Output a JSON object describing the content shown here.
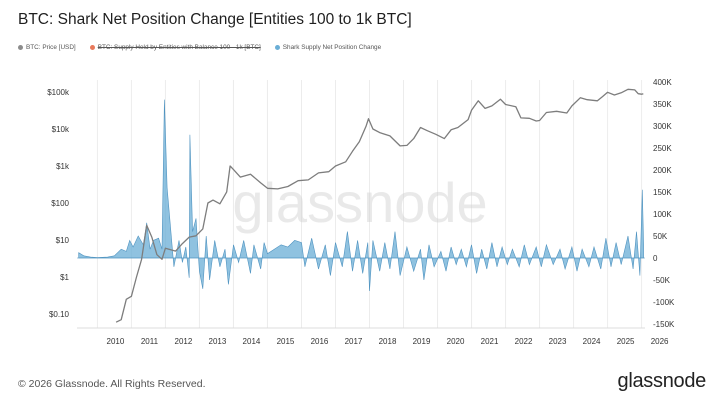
{
  "title": "BTC: Shark Net Position Change [Entities 100 to 1k BTC]",
  "legend": [
    {
      "label": "BTC: Price [USD]",
      "color": "#8c8c8c",
      "strike": false
    },
    {
      "label": "BTC: Supply Held by Entities with Balance 100 - 1k [BTC]",
      "color": "#e8795b",
      "strike": true
    },
    {
      "label": "Shark Supply Net Position Change",
      "color": "#6aaed6",
      "strike": false
    }
  ],
  "footer": "© 2026 Glassnode. All Rights Reserved.",
  "brand": "glassnode",
  "watermark": "glassnode",
  "chart_data": {
    "type": "line",
    "x_ticks": [
      "2010",
      "2011",
      "2012",
      "2013",
      "2014",
      "2015",
      "2016",
      "2017",
      "2018",
      "2019",
      "2020",
      "2021",
      "2022",
      "2023",
      "2024",
      "2025",
      "2026"
    ],
    "x_range": [
      2009.4,
      2026.1
    ],
    "y_left": {
      "scale": "log",
      "ticks": [
        "$0.10",
        "$1",
        "$10",
        "$100",
        "$1k",
        "$10k",
        "$100k"
      ],
      "tick_values": [
        0.1,
        1,
        10,
        100,
        1000,
        10000,
        100000
      ]
    },
    "y_right": {
      "scale": "linear",
      "ticks": [
        "400K",
        "350K",
        "300K",
        "250K",
        "200K",
        "150K",
        "100K",
        "50K",
        "0",
        "-50K",
        "-100K",
        "-150K"
      ],
      "tick_values": [
        400000,
        350000,
        300000,
        250000,
        200000,
        150000,
        100000,
        50000,
        0,
        -50000,
        -100000,
        -150000
      ]
    },
    "series": [
      {
        "name": "BTC: Price [USD]",
        "axis": "left",
        "color": "#8c8c8c",
        "points": [
          [
            2010.55,
            0.06
          ],
          [
            2010.7,
            0.07
          ],
          [
            2010.85,
            0.25
          ],
          [
            2011.0,
            0.3
          ],
          [
            2011.15,
            1.0
          ],
          [
            2011.3,
            3
          ],
          [
            2011.45,
            25
          ],
          [
            2011.6,
            12
          ],
          [
            2011.75,
            4
          ],
          [
            2011.9,
            3
          ],
          [
            2012.0,
            6
          ],
          [
            2012.3,
            5
          ],
          [
            2012.5,
            8
          ],
          [
            2012.7,
            12
          ],
          [
            2012.9,
            13
          ],
          [
            2013.1,
            20
          ],
          [
            2013.25,
            100
          ],
          [
            2013.4,
            120
          ],
          [
            2013.6,
            95
          ],
          [
            2013.8,
            200
          ],
          [
            2013.9,
            1000
          ],
          [
            2014.0,
            800
          ],
          [
            2014.2,
            500
          ],
          [
            2014.5,
            600
          ],
          [
            2014.8,
            350
          ],
          [
            2015.0,
            250
          ],
          [
            2015.3,
            240
          ],
          [
            2015.6,
            280
          ],
          [
            2015.9,
            400
          ],
          [
            2016.2,
            420
          ],
          [
            2016.5,
            650
          ],
          [
            2016.8,
            700
          ],
          [
            2017.0,
            1000
          ],
          [
            2017.3,
            1300
          ],
          [
            2017.5,
            2500
          ],
          [
            2017.7,
            4500
          ],
          [
            2017.9,
            12000
          ],
          [
            2017.97,
            19000
          ],
          [
            2018.1,
            10000
          ],
          [
            2018.3,
            8000
          ],
          [
            2018.6,
            6500
          ],
          [
            2018.9,
            3500
          ],
          [
            2019.1,
            3600
          ],
          [
            2019.3,
            5500
          ],
          [
            2019.5,
            11000
          ],
          [
            2019.7,
            9000
          ],
          [
            2019.95,
            7200
          ],
          [
            2020.2,
            5500
          ],
          [
            2020.4,
            9500
          ],
          [
            2020.6,
            11000
          ],
          [
            2020.9,
            18000
          ],
          [
            2021.0,
            32000
          ],
          [
            2021.2,
            58000
          ],
          [
            2021.4,
            36000
          ],
          [
            2021.6,
            42000
          ],
          [
            2021.85,
            64000
          ],
          [
            2022.0,
            46000
          ],
          [
            2022.3,
            40000
          ],
          [
            2022.45,
            20000
          ],
          [
            2022.7,
            19500
          ],
          [
            2022.9,
            16500
          ],
          [
            2023.0,
            17000
          ],
          [
            2023.2,
            28000
          ],
          [
            2023.5,
            30000
          ],
          [
            2023.8,
            27000
          ],
          [
            2023.95,
            42000
          ],
          [
            2024.2,
            70000
          ],
          [
            2024.4,
            62000
          ],
          [
            2024.7,
            58000
          ],
          [
            2024.85,
            75000
          ],
          [
            2025.0,
            98000
          ],
          [
            2025.2,
            83000
          ],
          [
            2025.4,
            95000
          ],
          [
            2025.6,
            118000
          ],
          [
            2025.8,
            114000
          ],
          [
            2025.9,
            90000
          ],
          [
            2026.0,
            87000
          ],
          [
            2026.05,
            90000
          ]
        ]
      },
      {
        "name": "Shark Supply Net Position Change",
        "axis": "right",
        "color": "#6aaed6",
        "points": [
          [
            2009.45,
            12000
          ],
          [
            2009.6,
            5000
          ],
          [
            2009.8,
            2000
          ],
          [
            2010.0,
            1000
          ],
          [
            2010.3,
            2000
          ],
          [
            2010.5,
            5000
          ],
          [
            2010.7,
            20000
          ],
          [
            2010.85,
            15000
          ],
          [
            2010.95,
            40000
          ],
          [
            2011.05,
            25000
          ],
          [
            2011.2,
            50000
          ],
          [
            2011.35,
            30000
          ],
          [
            2011.45,
            80000
          ],
          [
            2011.55,
            20000
          ],
          [
            2011.65,
            40000
          ],
          [
            2011.8,
            45000
          ],
          [
            2011.9,
            20000
          ],
          [
            2011.97,
            360000
          ],
          [
            2012.05,
            160000
          ],
          [
            2012.15,
            70000
          ],
          [
            2012.25,
            -20000
          ],
          [
            2012.4,
            40000
          ],
          [
            2012.5,
            -10000
          ],
          [
            2012.6,
            25000
          ],
          [
            2012.7,
            -45000
          ],
          [
            2012.72,
            280000
          ],
          [
            2012.8,
            60000
          ],
          [
            2012.9,
            90000
          ],
          [
            2013.0,
            -30000
          ],
          [
            2013.1,
            -70000
          ],
          [
            2013.2,
            50000
          ],
          [
            2013.3,
            -50000
          ],
          [
            2013.45,
            40000
          ],
          [
            2013.6,
            -20000
          ],
          [
            2013.75,
            20000
          ],
          [
            2013.85,
            -60000
          ],
          [
            2014.0,
            30000
          ],
          [
            2014.15,
            -10000
          ],
          [
            2014.3,
            40000
          ],
          [
            2014.5,
            -35000
          ],
          [
            2014.6,
            30000
          ],
          [
            2014.8,
            -25000
          ],
          [
            2014.9,
            35000
          ],
          [
            2015.0,
            10000
          ],
          [
            2015.2,
            20000
          ],
          [
            2015.4,
            30000
          ],
          [
            2015.6,
            25000
          ],
          [
            2015.8,
            40000
          ],
          [
            2016.0,
            35000
          ],
          [
            2016.1,
            -20000
          ],
          [
            2016.3,
            45000
          ],
          [
            2016.5,
            -25000
          ],
          [
            2016.7,
            30000
          ],
          [
            2016.85,
            -40000
          ],
          [
            2017.0,
            35000
          ],
          [
            2017.2,
            -20000
          ],
          [
            2017.35,
            60000
          ],
          [
            2017.5,
            -30000
          ],
          [
            2017.65,
            40000
          ],
          [
            2017.8,
            -35000
          ],
          [
            2017.95,
            35000
          ],
          [
            2018.0,
            -75000
          ],
          [
            2018.1,
            40000
          ],
          [
            2018.3,
            -30000
          ],
          [
            2018.45,
            35000
          ],
          [
            2018.6,
            -25000
          ],
          [
            2018.75,
            60000
          ],
          [
            2018.9,
            -40000
          ],
          [
            2019.1,
            25000
          ],
          [
            2019.3,
            -30000
          ],
          [
            2019.5,
            20000
          ],
          [
            2019.6,
            -50000
          ],
          [
            2019.75,
            30000
          ],
          [
            2019.9,
            -20000
          ],
          [
            2020.1,
            15000
          ],
          [
            2020.25,
            -30000
          ],
          [
            2020.4,
            25000
          ],
          [
            2020.55,
            -15000
          ],
          [
            2020.7,
            20000
          ],
          [
            2020.85,
            -20000
          ],
          [
            2021.0,
            30000
          ],
          [
            2021.15,
            -35000
          ],
          [
            2021.3,
            20000
          ],
          [
            2021.45,
            -25000
          ],
          [
            2021.6,
            35000
          ],
          [
            2021.75,
            -20000
          ],
          [
            2021.9,
            25000
          ],
          [
            2022.05,
            -15000
          ],
          [
            2022.2,
            20000
          ],
          [
            2022.4,
            -20000
          ],
          [
            2022.55,
            30000
          ],
          [
            2022.7,
            -15000
          ],
          [
            2022.9,
            25000
          ],
          [
            2023.05,
            -20000
          ],
          [
            2023.2,
            30000
          ],
          [
            2023.4,
            -15000
          ],
          [
            2023.6,
            20000
          ],
          [
            2023.75,
            -25000
          ],
          [
            2023.95,
            25000
          ],
          [
            2024.1,
            -30000
          ],
          [
            2024.25,
            20000
          ],
          [
            2024.45,
            -20000
          ],
          [
            2024.6,
            25000
          ],
          [
            2024.8,
            -25000
          ],
          [
            2024.95,
            45000
          ],
          [
            2025.1,
            -20000
          ],
          [
            2025.25,
            35000
          ],
          [
            2025.4,
            -15000
          ],
          [
            2025.6,
            50000
          ],
          [
            2025.75,
            -25000
          ],
          [
            2025.85,
            60000
          ],
          [
            2025.95,
            -40000
          ],
          [
            2026.02,
            155000
          ],
          [
            2026.06,
            30000
          ]
        ]
      }
    ],
    "grid": true,
    "legend_position": "top-left"
  }
}
